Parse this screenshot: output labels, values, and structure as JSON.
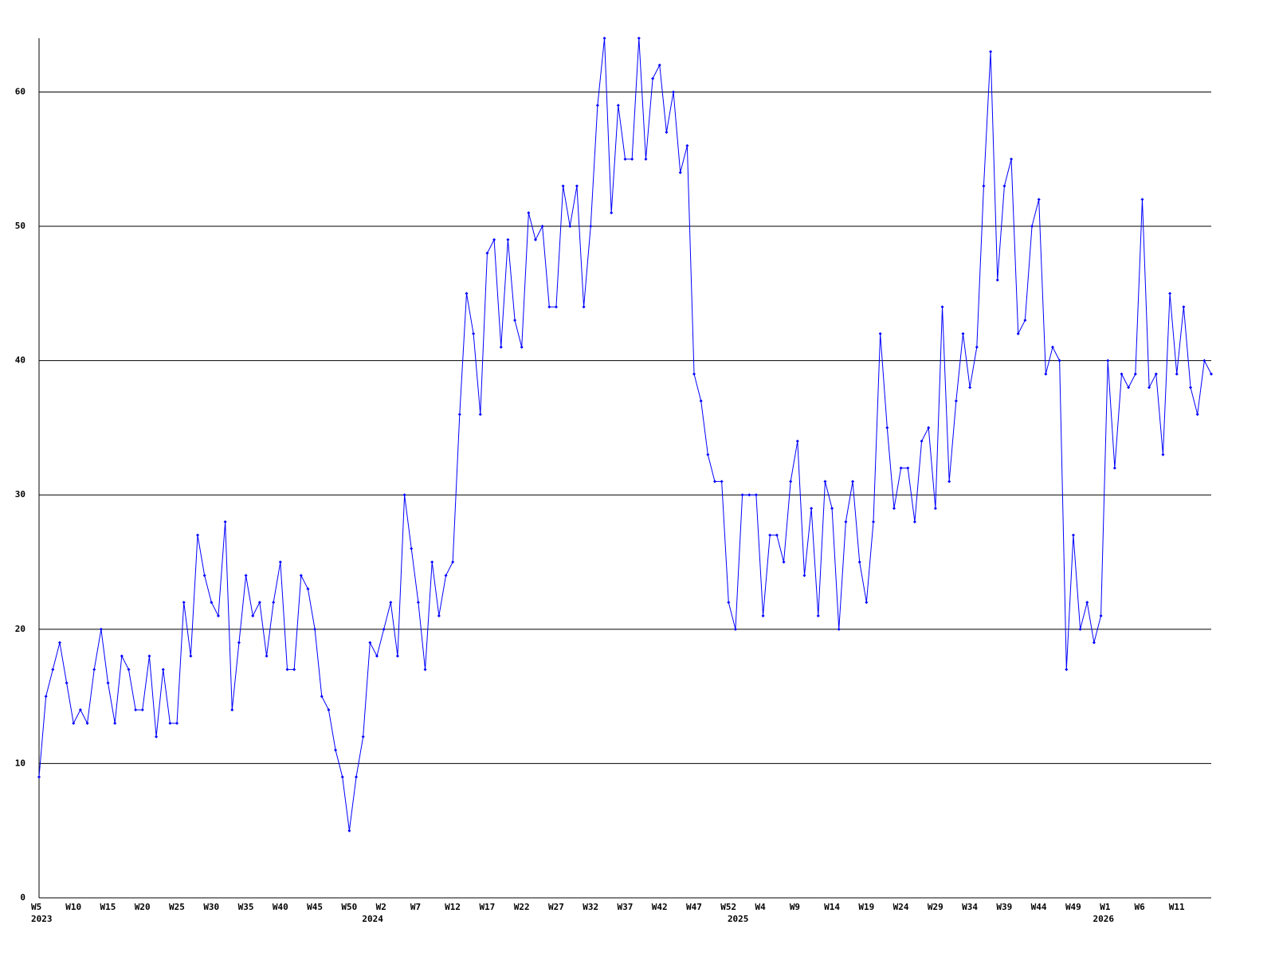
{
  "chart_data": {
    "type": "line",
    "categories": [
      "W5",
      null,
      null,
      null,
      null,
      "W10",
      null,
      null,
      null,
      null,
      "W15",
      null,
      null,
      null,
      null,
      "W20",
      null,
      null,
      null,
      null,
      "W25",
      null,
      null,
      null,
      null,
      "W30",
      null,
      null,
      null,
      null,
      "W35",
      null,
      null,
      null,
      null,
      "W40",
      null,
      null,
      null,
      null,
      "W45",
      null,
      null,
      null,
      null,
      "W50",
      null,
      null,
      null,
      null,
      "W2",
      null,
      null,
      null,
      null,
      "W7",
      null,
      null,
      null,
      null,
      "W12",
      null,
      null,
      null,
      null,
      "W17",
      null,
      null,
      null,
      null,
      "W22",
      null,
      null,
      null,
      null,
      "W27",
      null,
      null,
      null,
      null,
      "W32",
      null,
      null,
      null,
      null,
      "W37",
      null,
      null,
      null,
      null,
      "W42",
      null,
      null,
      null,
      null,
      "W47",
      null,
      null,
      null,
      null,
      "W52",
      null,
      null,
      null,
      null,
      "W4",
      null,
      null,
      null,
      null,
      "W9",
      null,
      null,
      null,
      null,
      "W14",
      null,
      null,
      null,
      null,
      "W19",
      null,
      null,
      null,
      null,
      "W24",
      null,
      null,
      null,
      null,
      "W29",
      null,
      null,
      null,
      null,
      "W34",
      null,
      null,
      null,
      null,
      "W39",
      null,
      null,
      null,
      null,
      "W44",
      null,
      null,
      null,
      null,
      "W49",
      null,
      null,
      null,
      null,
      "W1",
      null,
      null,
      null,
      null,
      "W6",
      null,
      null,
      null,
      null,
      "W11",
      null,
      null,
      null,
      null,
      null
    ],
    "year_labels": [
      "2023",
      null,
      null,
      null,
      null,
      null,
      null,
      null,
      null,
      null,
      null,
      null,
      null,
      null,
      null,
      null,
      null,
      null,
      null,
      null,
      null,
      null,
      null,
      null,
      null,
      null,
      null,
      null,
      null,
      null,
      null,
      null,
      null,
      null,
      null,
      null,
      null,
      null,
      null,
      null,
      null,
      null,
      null,
      null,
      null,
      null,
      null,
      null,
      "2024",
      null,
      null,
      null,
      null,
      null,
      null,
      null,
      null,
      null,
      null,
      null,
      null,
      null,
      null,
      null,
      null,
      null,
      null,
      null,
      null,
      null,
      null,
      null,
      null,
      null,
      null,
      null,
      null,
      null,
      null,
      null,
      null,
      null,
      null,
      null,
      null,
      null,
      null,
      null,
      null,
      null,
      null,
      null,
      null,
      null,
      null,
      null,
      null,
      null,
      null,
      null,
      null,
      "2025",
      null,
      null,
      null,
      null,
      null,
      null,
      null,
      null,
      null,
      null,
      null,
      null,
      null,
      null,
      null,
      null,
      null,
      null,
      null,
      null,
      null,
      null,
      null,
      null,
      null,
      null,
      null,
      null,
      null,
      null,
      null,
      null,
      null,
      null,
      null,
      null,
      null,
      null,
      null,
      null,
      null,
      null,
      null,
      null,
      null,
      null,
      null,
      null,
      null,
      null,
      null,
      null,
      "2026",
      null,
      null,
      null,
      null,
      null,
      null,
      null,
      null,
      null,
      null,
      null,
      null,
      null,
      null,
      null,
      null
    ],
    "values": [
      9,
      15,
      17,
      19,
      16,
      13,
      14,
      13,
      17,
      20,
      16,
      13,
      18,
      17,
      14,
      14,
      18,
      12,
      17,
      13,
      13,
      22,
      18,
      27,
      24,
      22,
      21,
      28,
      14,
      19,
      24,
      21,
      22,
      18,
      22,
      25,
      17,
      17,
      24,
      23,
      20,
      15,
      14,
      11,
      9,
      5,
      9,
      12,
      19,
      18,
      20,
      22,
      18,
      30,
      26,
      22,
      17,
      25,
      21,
      24,
      25,
      36,
      45,
      42,
      36,
      48,
      49,
      41,
      49,
      43,
      41,
      51,
      49,
      50,
      44,
      44,
      53,
      50,
      53,
      44,
      50,
      59,
      64,
      51,
      59,
      55,
      55,
      64,
      55,
      61,
      62,
      57,
      60,
      54,
      56,
      39,
      37,
      33,
      31,
      31,
      22,
      20,
      30,
      30,
      30,
      21,
      27,
      27,
      25,
      31,
      34,
      24,
      29,
      21,
      31,
      29,
      20,
      28,
      31,
      25,
      22,
      28,
      42,
      35,
      29,
      32,
      32,
      28,
      34,
      35,
      29,
      44,
      31,
      37,
      42,
      38,
      41,
      53,
      63,
      46,
      53,
      55,
      42,
      43,
      50,
      52,
      39,
      41,
      40,
      17,
      27,
      20,
      22,
      19,
      21,
      40,
      32,
      39,
      38,
      39,
      52,
      38,
      39,
      33,
      45,
      39,
      44,
      38,
      36,
      40,
      39
    ],
    "color": "#0000ff",
    "ylim": [
      0,
      64
    ],
    "yticks": [
      0,
      10,
      20,
      30,
      40,
      50,
      60
    ],
    "grid": true
  }
}
